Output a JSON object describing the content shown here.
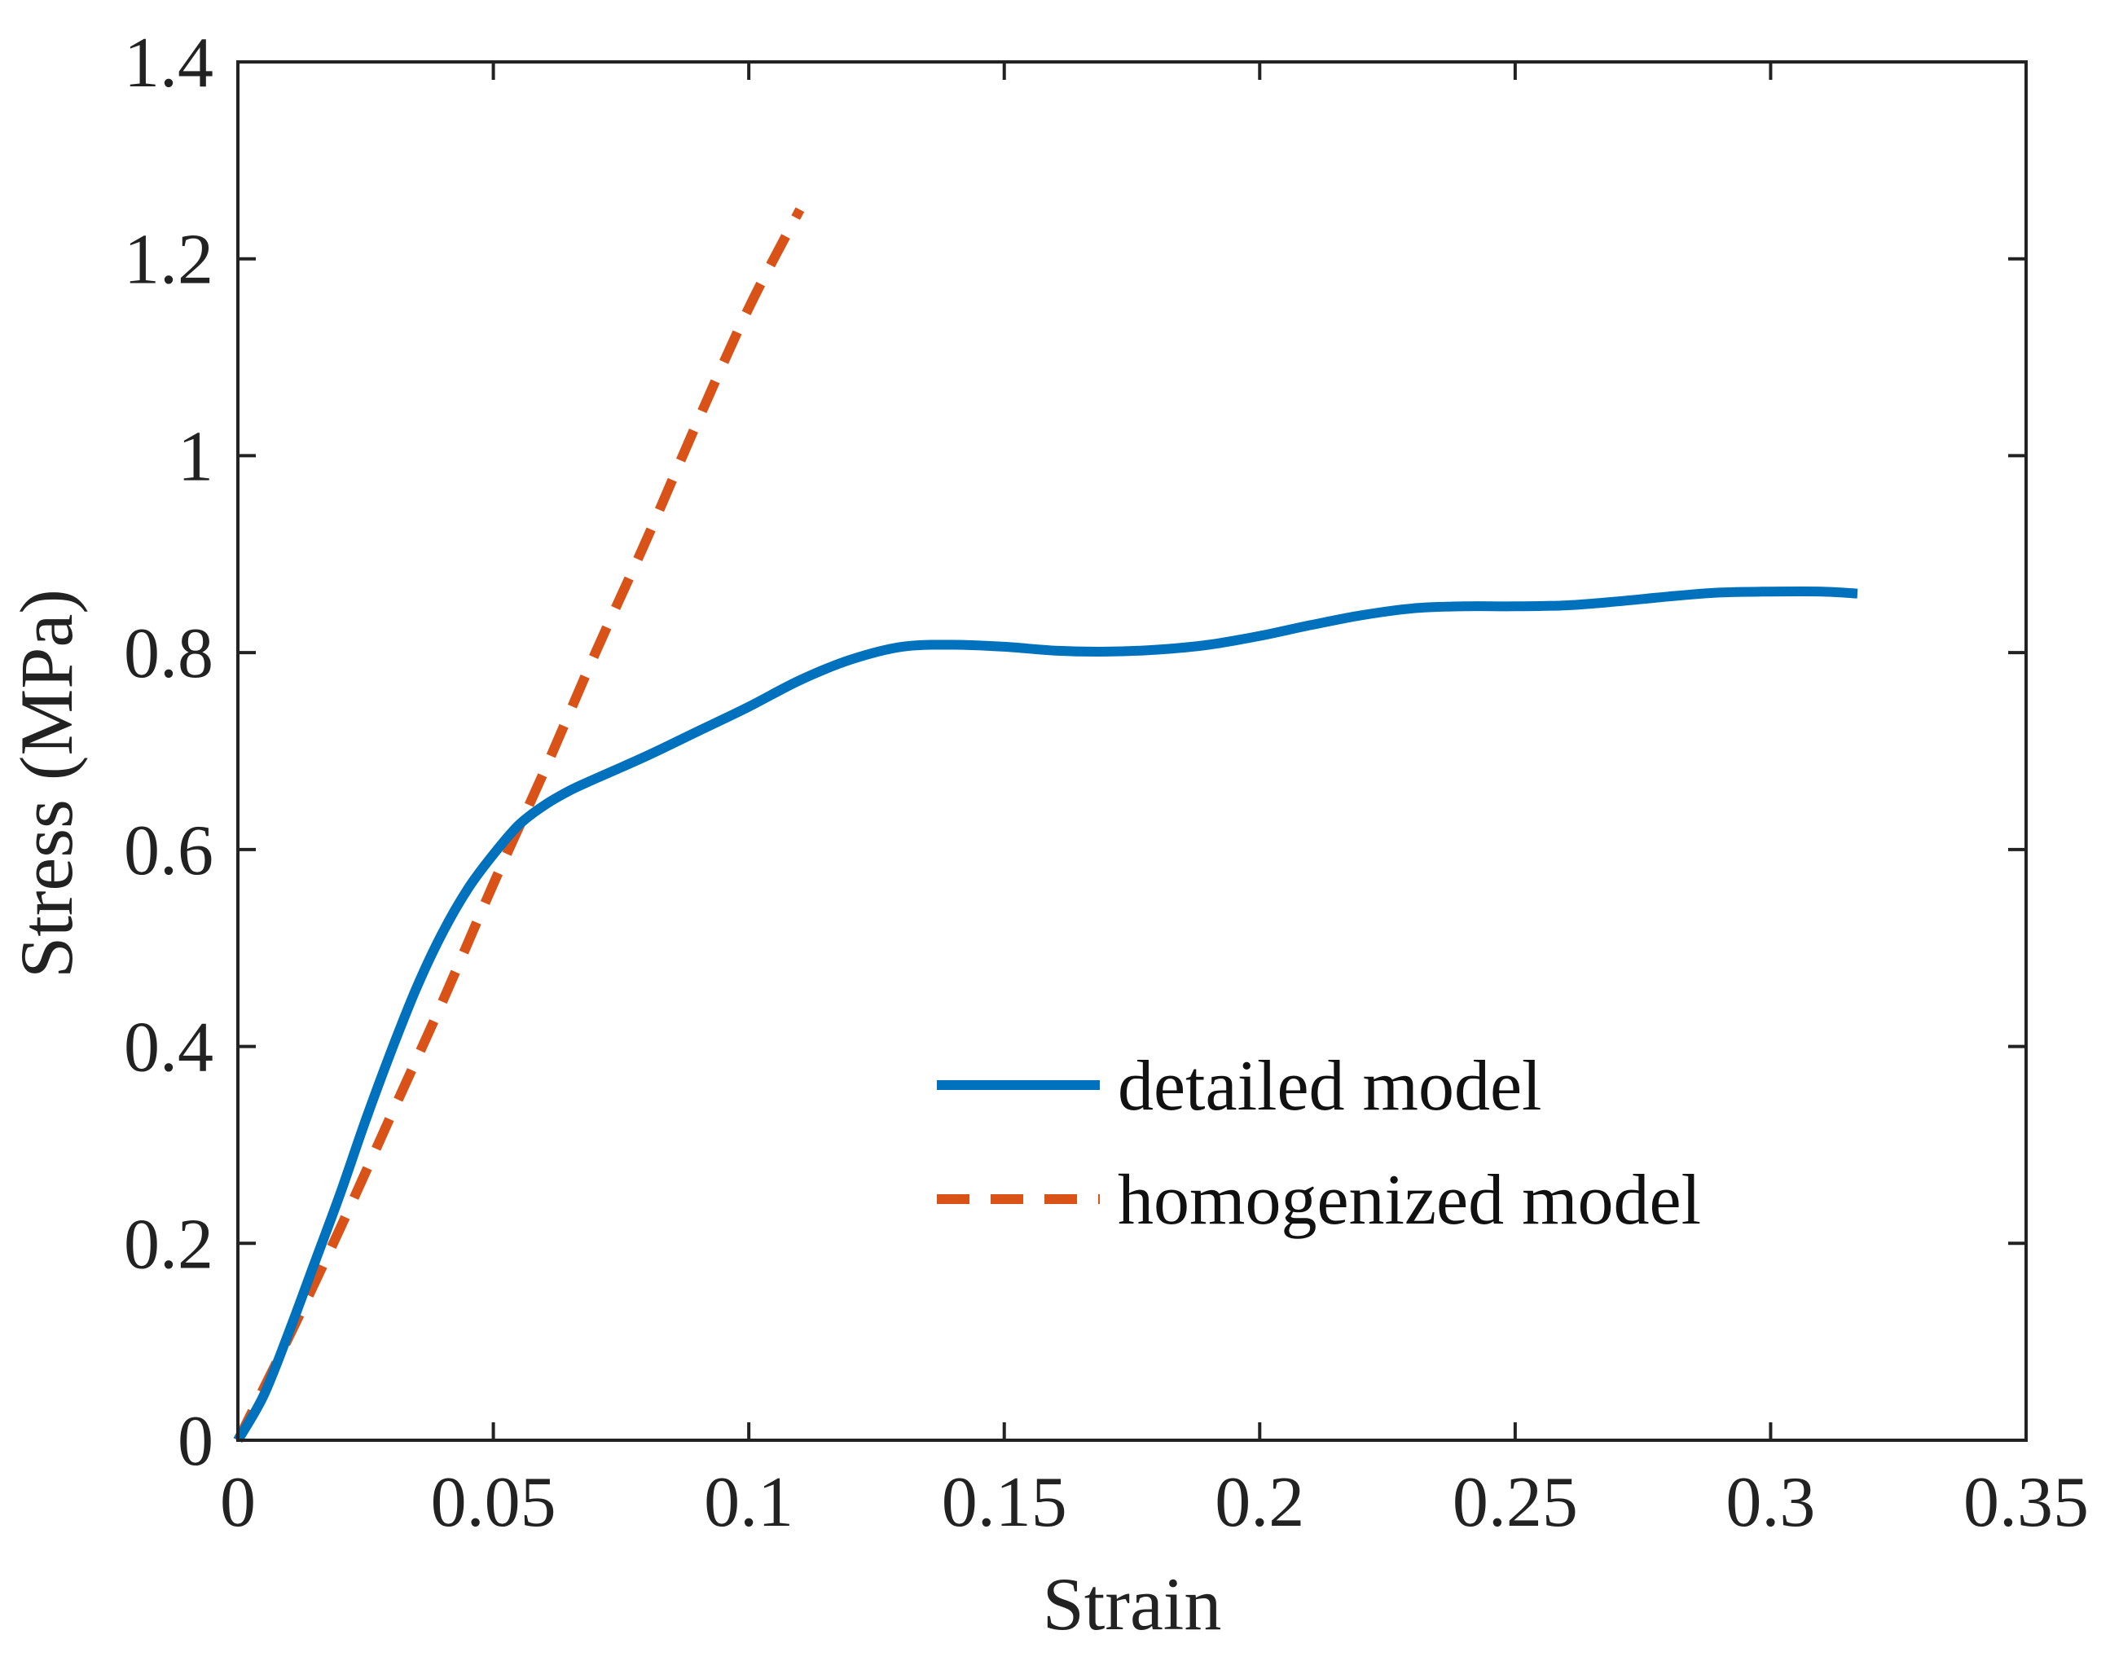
{
  "chart_data": {
    "type": "line",
    "title": "",
    "xlabel": "Strain",
    "ylabel": "Stress (MPa)",
    "xlim": [
      0,
      0.35
    ],
    "ylim": [
      0,
      1.4
    ],
    "xticks": [
      0,
      0.05,
      0.1,
      0.15,
      0.2,
      0.25,
      0.3,
      0.35
    ],
    "xtick_labels": [
      "0",
      "0.05",
      "0.1",
      "0.15",
      "0.2",
      "0.25",
      "0.3",
      "0.35"
    ],
    "yticks": [
      0,
      0.2,
      0.4,
      0.6,
      0.8,
      1.0,
      1.2,
      1.4
    ],
    "ytick_labels": [
      "0",
      "0.2",
      "0.4",
      "0.6",
      "0.8",
      "1",
      "1.2",
      "1.4"
    ],
    "grid": false,
    "legend_position": "lower-right",
    "series": [
      {
        "name": "detailed model",
        "color": "#0072BD",
        "style": "solid",
        "x": [
          0,
          0.005,
          0.01,
          0.015,
          0.02,
          0.025,
          0.03,
          0.035,
          0.04,
          0.045,
          0.05,
          0.055,
          0.06,
          0.065,
          0.07,
          0.08,
          0.09,
          0.1,
          0.11,
          0.12,
          0.13,
          0.14,
          0.15,
          0.16,
          0.17,
          0.18,
          0.19,
          0.2,
          0.21,
          0.22,
          0.23,
          0.24,
          0.25,
          0.26,
          0.27,
          0.28,
          0.29,
          0.3,
          0.31,
          0.317
        ],
        "y": [
          0,
          0.045,
          0.11,
          0.18,
          0.25,
          0.325,
          0.395,
          0.46,
          0.515,
          0.56,
          0.595,
          0.625,
          0.645,
          0.66,
          0.672,
          0.695,
          0.72,
          0.745,
          0.772,
          0.793,
          0.806,
          0.808,
          0.806,
          0.802,
          0.801,
          0.803,
          0.808,
          0.817,
          0.828,
          0.838,
          0.845,
          0.847,
          0.847,
          0.848,
          0.852,
          0.857,
          0.861,
          0.862,
          0.862,
          0.86
        ]
      },
      {
        "name": "homogenized model",
        "color": "#D95319",
        "style": "dashed",
        "x": [
          0,
          0.01,
          0.02,
          0.03,
          0.04,
          0.05,
          0.06,
          0.07,
          0.08,
          0.09,
          0.1,
          0.11
        ],
        "y": [
          0,
          0.105,
          0.215,
          0.33,
          0.445,
          0.565,
          0.68,
          0.8,
          0.915,
          1.035,
          1.15,
          1.25
        ]
      }
    ]
  }
}
